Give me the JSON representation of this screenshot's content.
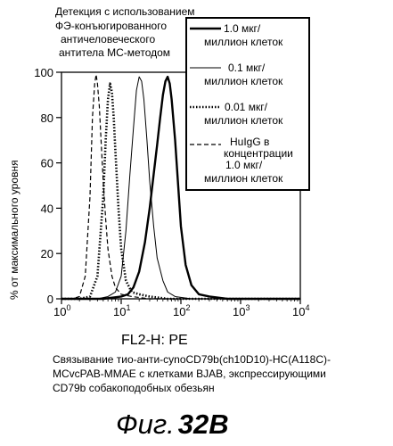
{
  "figure": {
    "top_annotation": [
      "Детекция с использованием",
      "ФЭ-конъюгированного",
      "античеловеческого",
      "антитела МС-методом"
    ],
    "caption": [
      "Связывание тио-анти-cynoCD79b(ch10D10)-HC(A118C)-",
      "MCvcPAB-MMAE с клетками BJAB, экспрессирующими",
      "CD79b собакоподобных обезьян"
    ],
    "fig_prefix": "Фиг.",
    "fig_number": "32B"
  },
  "chart_data": {
    "type": "line",
    "xlabel": "FL2-H: PE",
    "ylabel": "% от максимального уровня",
    "x_scale": "log",
    "xlim": [
      1,
      10000
    ],
    "ylim": [
      0,
      100
    ],
    "x_ticks": [
      {
        "value": 1,
        "base": "10",
        "exp": "0"
      },
      {
        "value": 10,
        "base": "10",
        "exp": "1"
      },
      {
        "value": 100,
        "base": "10",
        "exp": "2"
      },
      {
        "value": 1000,
        "base": "10",
        "exp": "3"
      },
      {
        "value": 10000,
        "base": "10",
        "exp": "4"
      }
    ],
    "y_ticks": [
      0,
      20,
      40,
      60,
      80,
      100
    ],
    "grid": false,
    "legend_position": "top-right",
    "series": [
      {
        "name_lines": [
          "1.0 мкг/",
          "миллион клеток"
        ],
        "style": "thick-solid",
        "x": [
          1,
          5,
          10,
          13,
          16,
          20,
          25,
          30,
          35,
          40,
          45,
          50,
          55,
          60,
          65,
          70,
          80,
          90,
          100,
          120,
          150,
          200,
          300,
          600,
          10000
        ],
        "y": [
          0,
          0,
          1,
          2,
          5,
          12,
          25,
          40,
          55,
          68,
          80,
          90,
          96,
          98,
          95,
          88,
          70,
          50,
          32,
          15,
          6,
          2,
          1,
          0,
          0
        ]
      },
      {
        "name_lines": [
          "0.1  мкг/",
          "миллион клеток"
        ],
        "style": "thin-solid",
        "x": [
          1,
          4,
          6,
          8,
          10,
          12,
          14,
          16,
          18,
          20,
          22,
          24,
          27,
          30,
          35,
          40,
          50,
          60,
          80,
          150,
          10000
        ],
        "y": [
          0,
          0,
          1,
          3,
          10,
          30,
          55,
          75,
          92,
          98,
          96,
          88,
          70,
          52,
          32,
          18,
          8,
          3,
          1,
          0,
          0
        ]
      },
      {
        "name_lines": [
          "0.01  мкг/",
          "миллион клеток"
        ],
        "style": "thick-dotted",
        "x": [
          1,
          2,
          3,
          4,
          5,
          5.5,
          6,
          6.5,
          7,
          7.5,
          8,
          9,
          10,
          12,
          15,
          20,
          30,
          60,
          10000
        ],
        "y": [
          0,
          0,
          1,
          10,
          45,
          70,
          88,
          95,
          91,
          80,
          65,
          40,
          22,
          8,
          3,
          2,
          1,
          0,
          0
        ]
      },
      {
        "name_lines": [
          "HuIgG  в",
          "концентрации",
          "1.0 мкг/",
          "миллион клеток"
        ],
        "style": "dashed",
        "x": [
          1,
          1.5,
          2,
          2.5,
          3,
          3.3,
          3.6,
          3.8,
          4,
          4.3,
          4.6,
          5,
          5.5,
          6,
          7,
          8,
          10,
          15,
          30,
          10000
        ],
        "y": [
          0,
          0,
          1,
          10,
          45,
          80,
          95,
          99,
          95,
          85,
          70,
          52,
          35,
          22,
          10,
          5,
          2,
          1,
          0,
          0
        ]
      }
    ]
  }
}
